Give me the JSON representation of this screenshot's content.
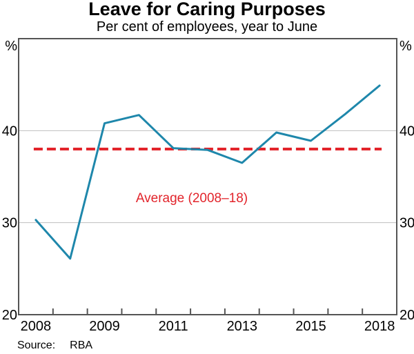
{
  "title": "Leave for Caring Purposes",
  "subtitle": "Per cent of employees, year to June",
  "source": {
    "label": "Source:",
    "value": "RBA"
  },
  "chart_data": {
    "type": "line",
    "title": "Leave for Caring Purposes",
    "subtitle": "Per cent of employees, year to June",
    "n_points": 11,
    "x_labels": [
      {
        "position": 1,
        "label": "2008"
      },
      {
        "position": 3,
        "label": "2009"
      },
      {
        "position": 5,
        "label": "2011"
      },
      {
        "position": 7,
        "label": "2013"
      },
      {
        "position": 9,
        "label": "2015"
      },
      {
        "position": 11,
        "label": "2018"
      }
    ],
    "ylim": [
      20,
      50
    ],
    "y_gridlines": [
      30,
      40
    ],
    "y_tick_labels": [
      "40",
      "30",
      "20"
    ],
    "y_tick_values": [
      40,
      30,
      20
    ],
    "y_unit_label": "%",
    "series": [
      {
        "name": "Leave for caring purposes",
        "values": [
          30.3,
          26.1,
          40.8,
          41.7,
          38.1,
          37.9,
          36.5,
          39.8,
          38.9,
          41.8,
          44.9
        ]
      }
    ],
    "average_line": {
      "label": "Average (2008–18)",
      "value": 38.0
    },
    "colors": {
      "line": "#1e87ab",
      "average": "#e2242b",
      "grid": "#bfbfbf",
      "frame": "#545454",
      "text": "#000000"
    },
    "legend": "none",
    "grid": "horizontal-only"
  }
}
